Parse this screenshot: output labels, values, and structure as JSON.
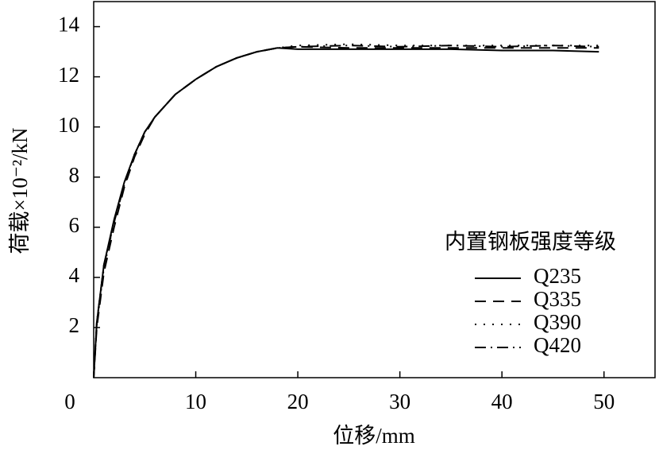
{
  "chart_data": {
    "type": "line",
    "x_label": "位移/mm",
    "y_label": "荷载×10⁻²/kN",
    "legend_title": "内置钢板强度等级",
    "legend": "lower right",
    "x": [
      0,
      0.3,
      1,
      2,
      3,
      4,
      5,
      6,
      8,
      10,
      12,
      14,
      16,
      18,
      20,
      25,
      30,
      35,
      40,
      45,
      49.5
    ],
    "series": [
      {
        "name": "Q235",
        "color": "#000000",
        "dash": "solid",
        "values": [
          0,
          2.2,
          4.5,
          6.3,
          7.8,
          8.9,
          9.8,
          10.4,
          11.3,
          11.9,
          12.4,
          12.75,
          13.0,
          13.15,
          13.1,
          13.1,
          13.1,
          13.1,
          13.05,
          13.05,
          13.0
        ]
      },
      {
        "name": "Q335",
        "color": "#000000",
        "dash": "dashed",
        "values": [
          0,
          2.0,
          4.2,
          6.0,
          7.6,
          8.8,
          9.7,
          10.4,
          11.3,
          11.9,
          12.4,
          12.75,
          13.0,
          13.15,
          13.2,
          13.15,
          13.15,
          13.15,
          13.15,
          13.15,
          13.15
        ]
      },
      {
        "name": "Q390",
        "color": "#000000",
        "dash": "dotted",
        "values": [
          0,
          2.1,
          4.4,
          6.2,
          7.7,
          8.9,
          9.8,
          10.4,
          11.3,
          11.9,
          12.4,
          12.75,
          13.0,
          13.15,
          13.25,
          13.3,
          13.25,
          13.25,
          13.25,
          13.25,
          13.25
        ]
      },
      {
        "name": "Q420",
        "color": "#000000",
        "dash": "dashdot",
        "values": [
          0,
          2.2,
          4.5,
          6.2,
          7.7,
          8.9,
          9.8,
          10.4,
          11.3,
          11.9,
          12.4,
          12.75,
          13.0,
          13.15,
          13.2,
          13.25,
          13.2,
          13.25,
          13.2,
          13.25,
          13.2
        ]
      }
    ],
    "xlim": [
      0,
      55
    ],
    "xticks": [
      0,
      10,
      20,
      30,
      40,
      50
    ],
    "ylim": [
      0,
      15
    ],
    "yticks": [
      2,
      4,
      6,
      8,
      10,
      12,
      14
    ]
  }
}
